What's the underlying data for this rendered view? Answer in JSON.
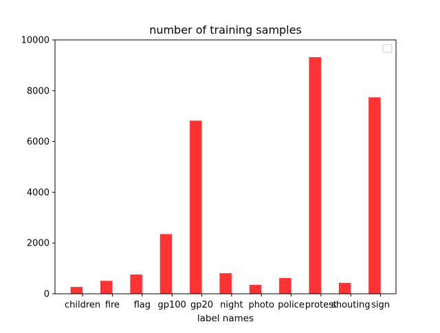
{
  "chart_data": {
    "type": "bar",
    "title": "number of training samples",
    "xlabel": "label names",
    "ylabel": "",
    "categories": [
      "children",
      "fire",
      "flag",
      "gp100",
      "gp20",
      "night",
      "photo",
      "police",
      "protest",
      "shouting",
      "sign"
    ],
    "values": [
      270,
      510,
      760,
      2350,
      6820,
      810,
      350,
      620,
      9320,
      430,
      7740
    ],
    "ylim": [
      0,
      10000
    ],
    "yticks": [
      0,
      2000,
      4000,
      6000,
      8000,
      10000
    ],
    "bar_color": "#ff3333",
    "legend": {
      "placement": "top-right",
      "entries": []
    },
    "grid": false
  }
}
